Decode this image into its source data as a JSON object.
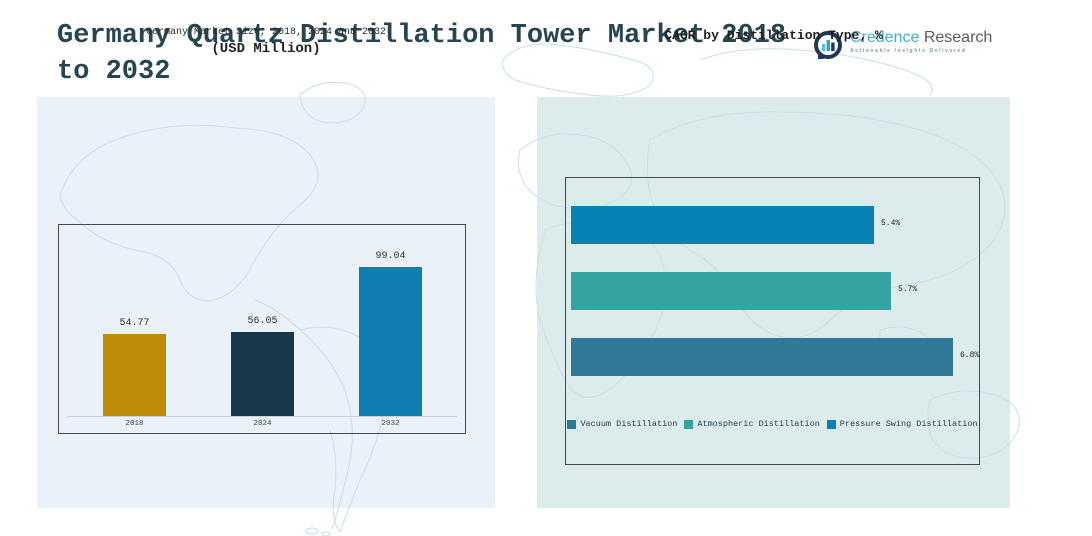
{
  "header": {
    "title_line1": "Germany Quartz Distillation Tower Market 2018",
    "title_line2": "to 2032",
    "logo": {
      "brand_primary": "Credence",
      "brand_secondary": " Research",
      "tagline": "Actionable Insights Delivered"
    }
  },
  "colors": {
    "title_text": "#264551",
    "left_panel_bg": "#eaf1f8",
    "right_panel_bg": "#dcecec",
    "brand_teal": "#3cb0cf",
    "brand_gray": "#58595b",
    "map_line": "#c7dfe7"
  },
  "chart_data": [
    {
      "type": "bar",
      "orientation": "vertical",
      "title": "Germany Market Size, 2018, 2024 and 2032",
      "subtitle": "(USD Million)",
      "categories": [
        "2018",
        "2024",
        "2032"
      ],
      "values": [
        54.77,
        56.05,
        99.04
      ],
      "value_labels": [
        "54.77",
        "56.05",
        "99.04"
      ],
      "bar_colors": [
        "#bf8c08",
        "#17384a",
        "#0e7eb0"
      ],
      "ylabel": "",
      "xlabel": "",
      "ylim": [
        0,
        127
      ],
      "grid": false,
      "legend_position": "none"
    },
    {
      "type": "bar",
      "orientation": "horizontal",
      "title": "CAGR by Distillation Type, %",
      "categories": [
        "Pressure Swing Distillation",
        "Atmospheric Distillation",
        "Vacuum Distillation"
      ],
      "values": [
        5.4,
        5.7,
        6.8
      ],
      "value_labels": [
        "5.4%",
        "5.7%",
        "6.8%"
      ],
      "bar_colors": [
        "#0881b4",
        "#34a4a0",
        "#2f7896"
      ],
      "xlabel": "",
      "ylabel": "",
      "xlim": [
        0,
        7.3
      ],
      "grid": false,
      "legend_position": "bottom",
      "legend": [
        {
          "label": "Vacuum Distillation",
          "color": "#2f7896"
        },
        {
          "label": "Atmospheric Distillation",
          "color": "#34a4a0"
        },
        {
          "label": "Pressure Swing Distillation",
          "color": "#0881b4"
        }
      ]
    }
  ]
}
